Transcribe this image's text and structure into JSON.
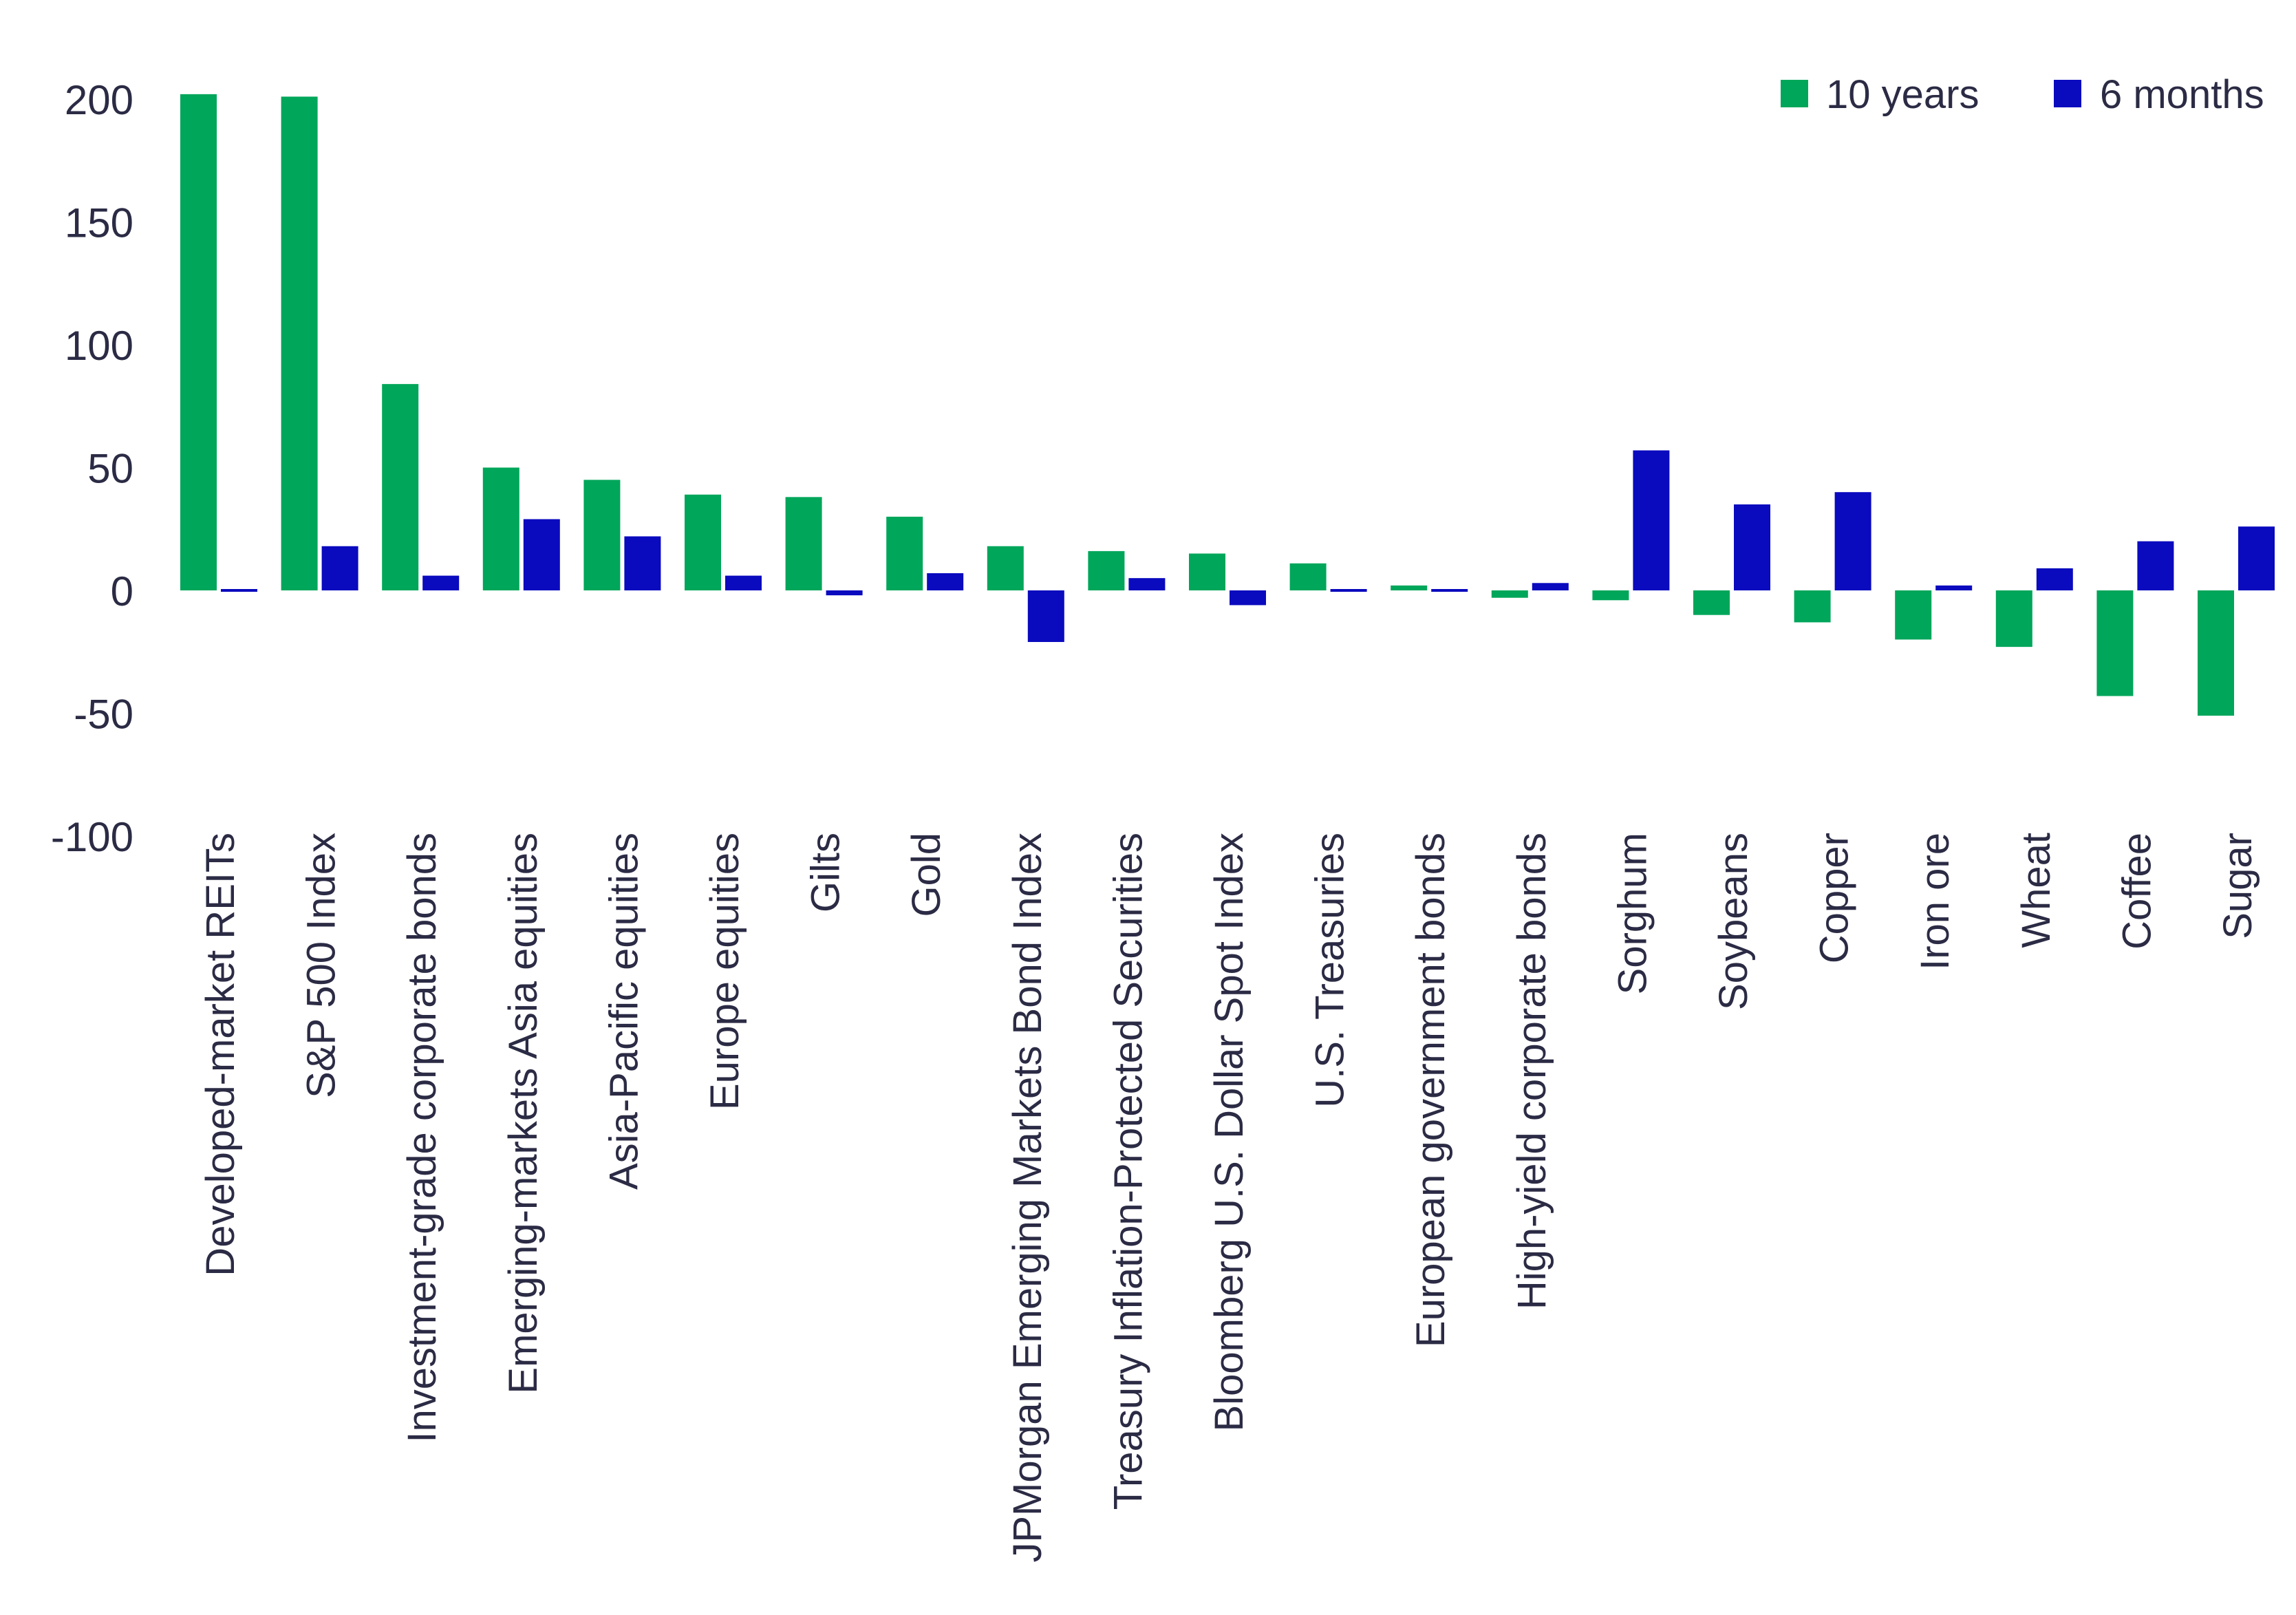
{
  "chart_data": {
    "type": "bar",
    "title": "",
    "xlabel": "",
    "ylabel": "",
    "ylim": [
      -100,
      200
    ],
    "yticks": [
      200,
      150,
      100,
      50,
      0,
      -50,
      -100
    ],
    "grid": false,
    "legend_position": "top-right",
    "categories": [
      "Developed-market REITs",
      "S&P 500 Index",
      "Investment-grade corporate bonds",
      "Emerging-markets Asia equities",
      "Asia-Pacific equities",
      "Europe equities",
      "Gilts",
      "Gold",
      "JPMorgan Emerging Markets Bond Index",
      "Treasury Inflation-Protected Securities",
      "Bloomberg U.S. Dollar Spot Index",
      "U.S. Treasuries",
      "European government bonds",
      "High-yield corporate bonds",
      "Sorghum",
      "Soybeans",
      "Copper",
      "Iron ore",
      "Wheat",
      "Coffee",
      "Sugar"
    ],
    "series": [
      {
        "name": "10 years",
        "color": "#00a65a",
        "values": [
          202,
          201,
          84,
          50,
          45,
          39,
          38,
          30,
          18,
          16,
          15,
          11,
          2,
          -3,
          -4,
          -10,
          -13,
          -20,
          -23,
          -43,
          -51
        ]
      },
      {
        "name": "6 months",
        "color": "#0a0abf",
        "values": [
          0,
          18,
          6,
          29,
          22,
          6,
          -2,
          7,
          -21,
          5,
          -6,
          0,
          0,
          3,
          57,
          35,
          40,
          2,
          9,
          20,
          26
        ]
      }
    ]
  }
}
